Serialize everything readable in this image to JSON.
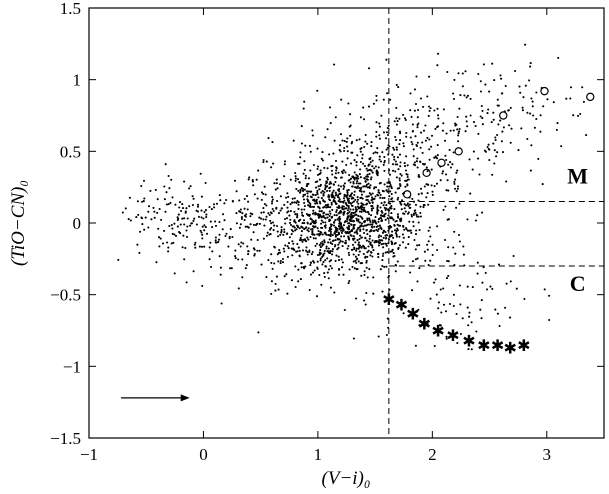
{
  "chart_data": {
    "type": "scatter",
    "title": "",
    "xlabel": "(V−i)₀",
    "ylabel": "(TiO−CN)₀",
    "xlim": [
      -1,
      3.5
    ],
    "ylim": [
      -1.5,
      1.5
    ],
    "x_ticks": [
      -1,
      0,
      1,
      2,
      3
    ],
    "y_ticks": [
      -1.5,
      -1,
      -0.5,
      0,
      0.5,
      1,
      1.5
    ],
    "x_tick_labels": [
      "−1",
      "0",
      "1",
      "2",
      "3"
    ],
    "y_tick_labels": [
      "−1.5",
      "−1",
      "−0.5",
      "0",
      "0.5",
      "1",
      "1.5"
    ],
    "grid": false,
    "divider_lines": {
      "vertical_x": 1.62,
      "M_boundary_y": 0.15,
      "C_boundary_y": -0.3
    },
    "region_labels": [
      {
        "text": "M",
        "x": 3.27,
        "y": 0.33
      },
      {
        "text": "C",
        "x": 3.27,
        "y": -0.42
      }
    ],
    "reddening_vector": {
      "x0": -0.72,
      "y0": -1.22,
      "x1": -0.12,
      "y1": -1.22
    },
    "series": [
      {
        "marker": "dot",
        "density": "dense cloud of field stars",
        "clusters": [
          {
            "cx": 1.3,
            "cy": 0.05,
            "sx": 0.32,
            "sy": 0.2,
            "n": 1250
          },
          {
            "cx": 1.75,
            "cy": 0.45,
            "sx": 0.45,
            "sy": 0.22,
            "n": 330
          },
          {
            "cx": 2.5,
            "cy": 0.82,
            "sx": 0.5,
            "sy": 0.18,
            "n": 130
          },
          {
            "cx": -0.15,
            "cy": 0.0,
            "sx": 0.3,
            "sy": 0.16,
            "n": 170
          },
          {
            "cx": 0.65,
            "cy": -0.05,
            "sx": 0.35,
            "sy": 0.22,
            "n": 260
          },
          {
            "cx": 2.2,
            "cy": -0.55,
            "sx": 0.35,
            "sy": 0.2,
            "n": 90
          }
        ]
      },
      {
        "marker": "star",
        "points": [
          [
            1.62,
            -0.53
          ],
          [
            1.73,
            -0.57
          ],
          [
            1.83,
            -0.63
          ],
          [
            1.93,
            -0.7
          ],
          [
            2.05,
            -0.75
          ],
          [
            2.18,
            -0.78
          ],
          [
            2.32,
            -0.82
          ],
          [
            2.45,
            -0.85
          ],
          [
            2.57,
            -0.85
          ],
          [
            2.68,
            -0.87
          ],
          [
            2.8,
            -0.85
          ]
        ]
      },
      {
        "marker": "circle",
        "points": [
          [
            1.78,
            0.2
          ],
          [
            1.95,
            0.35
          ],
          [
            2.08,
            0.42
          ],
          [
            2.23,
            0.5
          ],
          [
            2.62,
            0.75
          ],
          [
            2.98,
            0.92
          ],
          [
            3.38,
            0.88
          ]
        ]
      }
    ]
  }
}
